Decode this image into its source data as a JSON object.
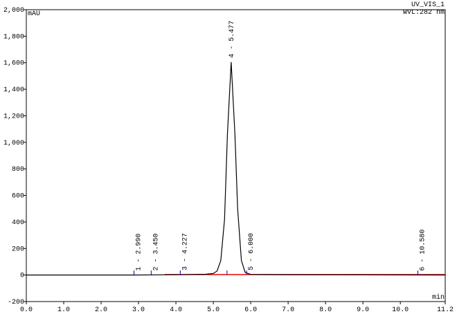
{
  "chart_data": {
    "type": "line",
    "y_label": "mAU",
    "x_label": "min",
    "channel": "UV_VIS_1",
    "wavelength": "WVL:282 nm",
    "xlim": [
      0,
      11.2
    ],
    "ylim": [
      -200,
      2000
    ],
    "xticks": [
      {
        "value": 0,
        "label": "0.0"
      },
      {
        "value": 1,
        "label": "1.0"
      },
      {
        "value": 2,
        "label": "2.0"
      },
      {
        "value": 3,
        "label": "3.0"
      },
      {
        "value": 4,
        "label": "4.0"
      },
      {
        "value": 5,
        "label": "5.0"
      },
      {
        "value": 6,
        "label": "6.0"
      },
      {
        "value": 7,
        "label": "7.0"
      },
      {
        "value": 8,
        "label": "8.0"
      },
      {
        "value": 9,
        "label": "9.0"
      },
      {
        "value": 10,
        "label": "10.0"
      },
      11.2
    ],
    "yticks": [
      -200,
      0,
      200,
      400,
      600,
      800,
      {
        "value": 1000,
        "label": "1,000"
      },
      {
        "value": 1200,
        "label": "1,200"
      },
      {
        "value": 1400,
        "label": "1,400"
      },
      {
        "value": 1600,
        "label": "1,600"
      },
      {
        "value": 1800,
        "label": "1,800"
      },
      {
        "value": 2000,
        "label": "2,000"
      }
    ],
    "series": [
      {
        "name": "UV_VIS_1",
        "color": "#000000",
        "x": [
          0,
          2.9,
          3.5,
          4.2,
          4.8,
          5.0,
          5.1,
          5.2,
          5.3,
          5.377,
          5.477,
          5.577,
          5.65,
          5.75,
          5.85,
          6.0,
          7.0,
          9.0,
          11.2
        ],
        "values": [
          0,
          0,
          1,
          3,
          6,
          12,
          30,
          110,
          420,
          1062,
          1605,
          1062,
          500,
          110,
          20,
          4,
          2,
          1,
          0
        ]
      }
    ],
    "peaks": [
      {
        "label": "1 - 2.990",
        "x": 2.99
      },
      {
        "label": "2 - 3.450",
        "x": 3.45
      },
      {
        "label": "3 - 4.227",
        "x": 4.227
      },
      {
        "label": "4 - 5.477",
        "x": 5.477
      },
      {
        "label": "5 - 6.000",
        "x": 6.0
      },
      {
        "label": "6 - 10.580",
        "x": 10.58
      }
    ]
  }
}
